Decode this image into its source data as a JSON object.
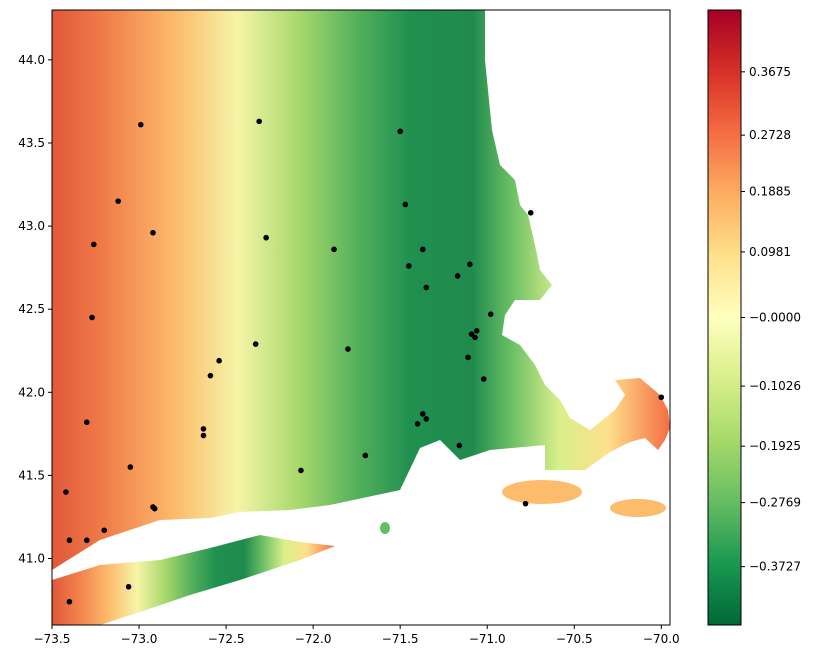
{
  "chart_data": {
    "type": "scatter",
    "title": "",
    "xlabel": "",
    "ylabel": "",
    "xlim": [
      -73.5,
      -69.95
    ],
    "ylim": [
      40.6,
      44.3
    ],
    "x_ticks": [
      -73.5,
      -73.0,
      -72.5,
      -72.0,
      -71.5,
      -71.0,
      -70.5,
      -70.0
    ],
    "x_tick_labels": [
      "−73.5",
      "−73.0",
      "−72.5",
      "−72.0",
      "−71.5",
      "−71.0",
      "−70.5",
      "−70.0"
    ],
    "y_ticks": [
      41.0,
      41.5,
      42.0,
      42.5,
      43.0,
      43.5,
      44.0
    ],
    "y_tick_labels": [
      "41.0",
      "41.5",
      "42.0",
      "42.5",
      "43.0",
      "43.5",
      "44.0"
    ],
    "colorbar": {
      "colormap": "RdYlGn_r",
      "vmin": -0.46,
      "vmax": 0.46,
      "ticks": [
        0.3675,
        0.2728,
        0.1885,
        0.0981,
        0.0,
        -0.1026,
        -0.1925,
        -0.2769,
        -0.3727
      ],
      "tick_labels": [
        "0.3675",
        "0.2728",
        "0.1885",
        "0.0981",
        "−0.0000",
        "−0.1026",
        "−0.1925",
        "−0.2769",
        "−0.3727"
      ]
    },
    "points": [
      [
        -72.99,
        43.61
      ],
      [
        -72.31,
        43.63
      ],
      [
        -71.5,
        43.57
      ],
      [
        -73.12,
        43.15
      ],
      [
        -71.47,
        43.13
      ],
      [
        -70.75,
        43.08
      ],
      [
        -72.92,
        42.96
      ],
      [
        -72.27,
        42.93
      ],
      [
        -73.26,
        42.89
      ],
      [
        -71.88,
        42.86
      ],
      [
        -71.37,
        42.86
      ],
      [
        -71.45,
        42.76
      ],
      [
        -71.1,
        42.77
      ],
      [
        -71.17,
        42.7
      ],
      [
        -71.35,
        42.63
      ],
      [
        -70.98,
        42.47
      ],
      [
        -73.27,
        42.45
      ],
      [
        -71.06,
        42.37
      ],
      [
        -71.09,
        42.35
      ],
      [
        -71.07,
        42.33
      ],
      [
        -72.33,
        42.29
      ],
      [
        -71.8,
        42.26
      ],
      [
        -72.54,
        42.19
      ],
      [
        -71.11,
        42.21
      ],
      [
        -72.59,
        42.1
      ],
      [
        -71.02,
        42.08
      ],
      [
        -70.0,
        41.97
      ],
      [
        -71.37,
        41.87
      ],
      [
        -71.35,
        41.84
      ],
      [
        -71.4,
        41.81
      ],
      [
        -73.3,
        41.82
      ],
      [
        -72.63,
        41.78
      ],
      [
        -72.63,
        41.74
      ],
      [
        -71.16,
        41.68
      ],
      [
        -71.7,
        41.62
      ],
      [
        -73.05,
        41.55
      ],
      [
        -72.07,
        41.53
      ],
      [
        -73.42,
        41.4
      ],
      [
        -72.92,
        41.31
      ],
      [
        -72.91,
        41.3
      ],
      [
        -70.78,
        41.33
      ],
      [
        -73.2,
        41.17
      ],
      [
        -73.4,
        41.11
      ],
      [
        -73.3,
        41.11
      ],
      [
        -73.06,
        40.83
      ],
      [
        -73.4,
        40.74
      ]
    ]
  }
}
